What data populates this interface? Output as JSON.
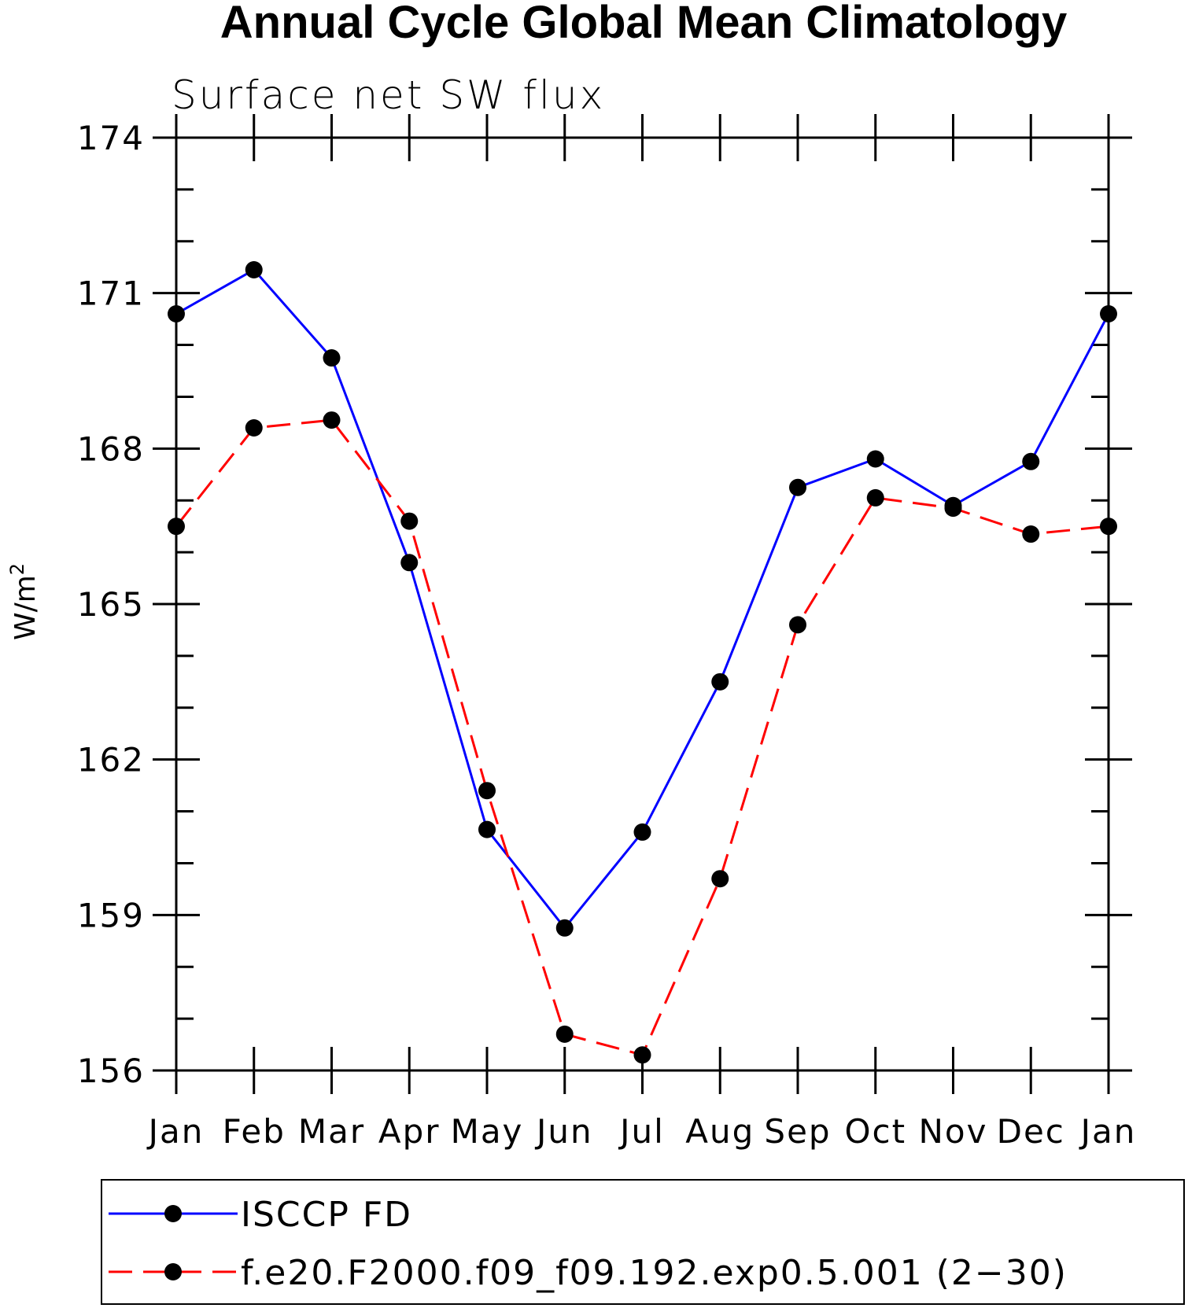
{
  "chart_data": {
    "type": "line",
    "title": "Annual Cycle Global Mean Climatology",
    "subtitle": "Surface net SW flux",
    "xlabel": "",
    "ylabel": "W/m",
    "ylabel_superscript": "2",
    "categories": [
      "Jan",
      "Feb",
      "Mar",
      "Apr",
      "May",
      "Jun",
      "Jul",
      "Aug",
      "Sep",
      "Oct",
      "Nov",
      "Dec",
      "Jan"
    ],
    "yticks": [
      "174",
      "171",
      "168",
      "165",
      "162",
      "159",
      "156"
    ],
    "ytick_values": [
      174,
      171,
      168,
      165,
      162,
      159,
      156
    ],
    "ylim": [
      156,
      174
    ],
    "series": [
      {
        "name": "ISCCP FD",
        "color": "#0000ff",
        "style": "solid",
        "values": [
          170.6,
          171.45,
          169.75,
          165.8,
          160.65,
          158.75,
          160.6,
          163.5,
          167.25,
          167.8,
          166.9,
          167.75,
          170.6
        ]
      },
      {
        "name": "f.e20.F2000.f09_f09.192.exp0.5.001 (2−30)",
        "color": "#ff0000",
        "style": "dashed",
        "values": [
          166.5,
          168.4,
          168.55,
          166.6,
          161.4,
          156.7,
          156.3,
          159.7,
          164.6,
          167.05,
          166.85,
          166.35,
          166.5
        ]
      }
    ],
    "marker_color": "#000000",
    "legend_position": "bottom",
    "grid": false
  }
}
